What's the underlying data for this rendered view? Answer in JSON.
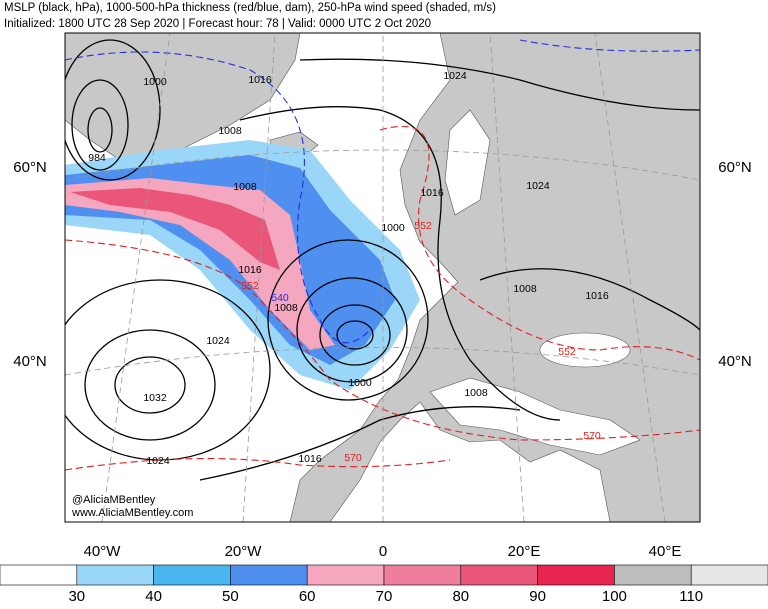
{
  "header": {
    "title": "MSLP (black, hPa), 1000-500-hPa thickness (red/blue, dam), 250-hPa wind speed (shaded, m/s)",
    "subtitle": "Initialized: 1800 UTC 28 Sep 2020 | Forecast hour: 78 | Valid: 0000 UTC 2 Oct 2020"
  },
  "map": {
    "lat_labels": [
      "60°N",
      "40°N"
    ],
    "lon_labels": [
      "40°W",
      "20°W",
      "0",
      "20°E",
      "40°E"
    ],
    "contour_labels": {
      "pressure": [
        1000,
        1016,
        1008,
        984,
        1024,
        1008,
        1016,
        1000,
        1024,
        1016,
        1008,
        1008,
        1016,
        1024,
        1000,
        1032,
        1008,
        1016,
        1024
      ],
      "thickness_red": [
        552,
        552,
        552,
        570,
        570
      ],
      "thickness_blue": [
        540
      ]
    }
  },
  "credits": [
    "@AliciaMBentley",
    "www.AliciaMBentley.com"
  ],
  "colorbar": {
    "colors": [
      "#ffffff",
      "#9ad6f7",
      "#49b7ef",
      "#4e8ff0",
      "#f6a7c0",
      "#ef7e9d",
      "#e9567a",
      "#e8244f",
      "#bdbdbd",
      "#e6e6e6"
    ],
    "ticks": [
      30,
      40,
      50,
      60,
      70,
      80,
      90,
      100,
      110
    ]
  }
}
